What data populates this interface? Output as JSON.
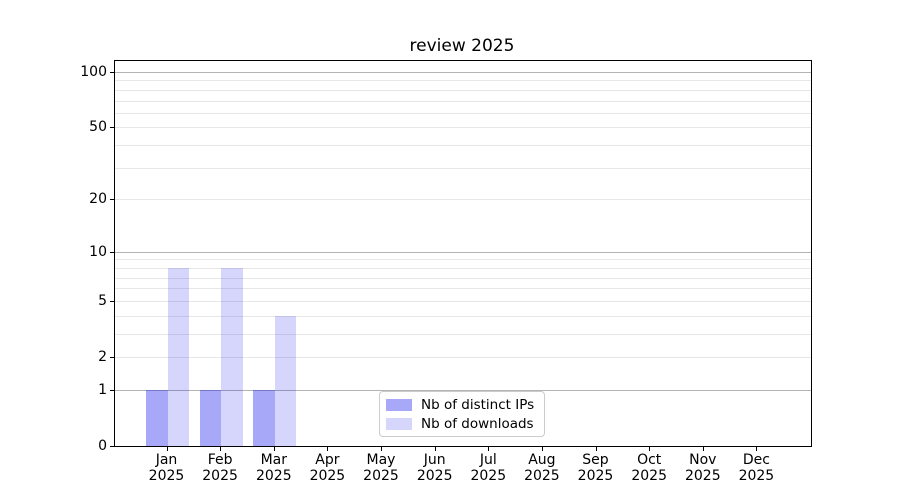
{
  "title": "review 2025",
  "chart_data": {
    "type": "bar",
    "title": "review 2025",
    "categories": [
      "Jan",
      "Feb",
      "Mar",
      "Apr",
      "May",
      "Jun",
      "Jul",
      "Aug",
      "Sep",
      "Oct",
      "Nov",
      "Dec"
    ],
    "category_sublabel": "2025",
    "series": [
      {
        "name": "Nb of distinct IPs",
        "color": "rgba(0,0,238,0.34)",
        "values": [
          1,
          1,
          1,
          0,
          0,
          0,
          0,
          0,
          0,
          0,
          0,
          0
        ]
      },
      {
        "name": "Nb of downloads",
        "color": "rgba(0,0,238,0.16)",
        "values": [
          8,
          8,
          4,
          0,
          0,
          0,
          0,
          0,
          0,
          0,
          0,
          0
        ]
      }
    ],
    "yaxis": {
      "scale": "log1p",
      "tick_values": [
        0,
        1,
        2,
        5,
        10,
        20,
        50,
        100
      ],
      "major_gridlines": [
        1,
        10,
        100
      ],
      "minor_gridlines": [
        2,
        3,
        4,
        5,
        6,
        7,
        8,
        9,
        20,
        30,
        40,
        50,
        60,
        70,
        80,
        90
      ],
      "ylim": [
        0,
        115
      ]
    },
    "grid": true,
    "legend_position": "lower center"
  },
  "colors": {
    "major_grid": "#b3b3b3",
    "minor_grid": "#e7e7e7",
    "spine": "#000000",
    "text": "#000000",
    "legend_border": "#cccccc",
    "background": "#ffffff"
  }
}
